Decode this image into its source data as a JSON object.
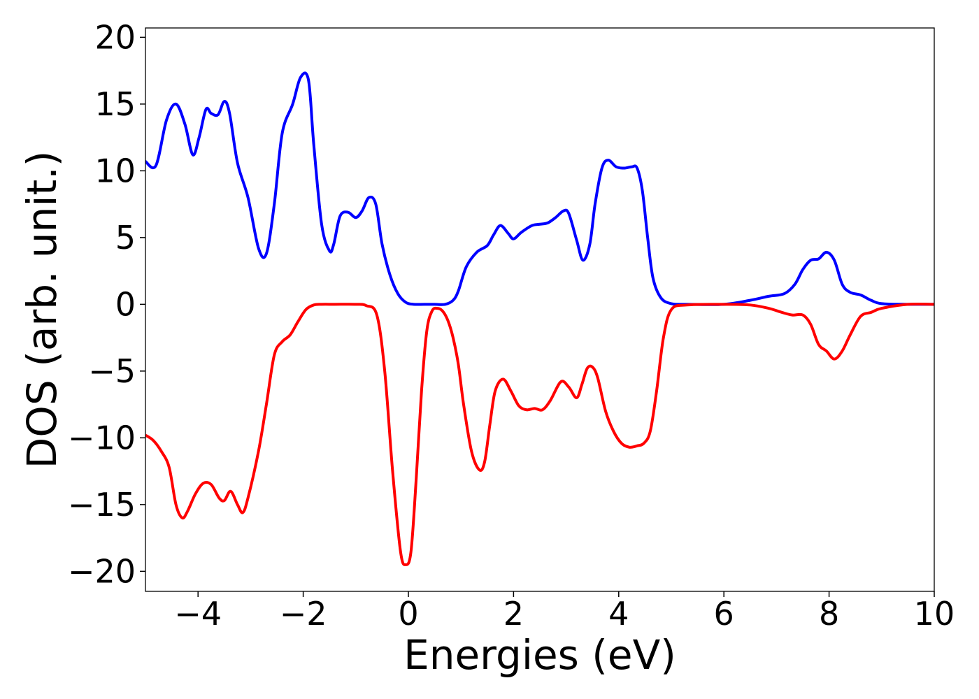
{
  "chart_data": {
    "type": "line",
    "xlabel": "Energies (eV)",
    "ylabel": "DOS (arb. unit.)",
    "xlim": [
      -5,
      10
    ],
    "ylim": [
      -21.5,
      20.7
    ],
    "xticks": [
      -4,
      -2,
      0,
      2,
      4,
      6,
      8,
      10
    ],
    "xtick_labels": [
      "−4",
      "−2",
      "0",
      "2",
      "4",
      "6",
      "8",
      "10"
    ],
    "yticks": [
      20,
      15,
      10,
      5,
      0,
      -5,
      -10,
      -15,
      -20
    ],
    "ytick_labels": [
      "20",
      "15",
      "10",
      "5",
      "0",
      "−5",
      "−10",
      "−15",
      "−20"
    ],
    "grid": false,
    "series": [
      {
        "color": "#0000ff",
        "x": [
          -5.0,
          -4.8,
          -4.6,
          -4.42,
          -4.25,
          -4.1,
          -3.98,
          -3.85,
          -3.75,
          -3.62,
          -3.5,
          -3.4,
          -3.25,
          -3.05,
          -2.85,
          -2.7,
          -2.55,
          -2.4,
          -2.2,
          -2.05,
          -1.9,
          -1.8,
          -1.65,
          -1.5,
          -1.42,
          -1.3,
          -1.15,
          -1.0,
          -0.88,
          -0.75,
          -0.62,
          -0.5,
          -0.35,
          -0.2,
          -0.05,
          0.1,
          0.3,
          0.5,
          0.7,
          0.85,
          0.95,
          1.1,
          1.3,
          1.5,
          1.62,
          1.75,
          1.9,
          2.0,
          2.15,
          2.35,
          2.5,
          2.65,
          2.8,
          2.95,
          3.05,
          3.2,
          3.32,
          3.45,
          3.55,
          3.68,
          3.8,
          3.95,
          4.1,
          4.25,
          4.35,
          4.45,
          4.55,
          4.65,
          4.8,
          5.0,
          5.3,
          6.0,
          6.5,
          6.85,
          7.15,
          7.35,
          7.5,
          7.65,
          7.8,
          7.95,
          8.1,
          8.25,
          8.4,
          8.6,
          8.8,
          9.0,
          9.5,
          10.0
        ],
        "y": [
          10.7,
          10.4,
          13.8,
          15.0,
          13.5,
          11.2,
          12.5,
          14.6,
          14.3,
          14.2,
          15.2,
          14.3,
          10.6,
          8.0,
          4.2,
          3.8,
          7.5,
          12.8,
          15.0,
          17.0,
          16.8,
          12.0,
          6.0,
          4.0,
          4.5,
          6.6,
          6.9,
          6.5,
          7.0,
          8.0,
          7.5,
          4.5,
          2.2,
          0.8,
          0.15,
          0.0,
          0.0,
          0.0,
          0.0,
          0.3,
          1.0,
          2.8,
          3.9,
          4.4,
          5.2,
          5.9,
          5.3,
          4.9,
          5.4,
          5.9,
          6.0,
          6.1,
          6.5,
          7.0,
          6.8,
          4.8,
          3.3,
          4.5,
          7.5,
          10.2,
          10.8,
          10.3,
          10.2,
          10.3,
          10.2,
          8.5,
          5.0,
          2.0,
          0.5,
          0.05,
          0.0,
          0.0,
          0.3,
          0.6,
          0.8,
          1.5,
          2.6,
          3.3,
          3.4,
          3.9,
          3.3,
          1.5,
          0.9,
          0.7,
          0.3,
          0.05,
          0.0,
          0.0
        ]
      },
      {
        "color": "#ff0000",
        "x": [
          -5.0,
          -4.85,
          -4.7,
          -4.55,
          -4.42,
          -4.3,
          -4.2,
          -4.05,
          -3.9,
          -3.75,
          -3.6,
          -3.5,
          -3.38,
          -3.25,
          -3.15,
          -3.05,
          -2.85,
          -2.7,
          -2.55,
          -2.4,
          -2.25,
          -2.1,
          -1.95,
          -1.8,
          -1.65,
          -1.4,
          -1.0,
          -0.8,
          -0.6,
          -0.45,
          -0.3,
          -0.15,
          -0.05,
          0.05,
          0.15,
          0.25,
          0.35,
          0.45,
          0.55,
          0.65,
          0.75,
          0.85,
          0.95,
          1.05,
          1.2,
          1.35,
          1.45,
          1.55,
          1.65,
          1.8,
          1.95,
          2.1,
          2.25,
          2.4,
          2.55,
          2.7,
          2.9,
          3.05,
          3.2,
          3.3,
          3.4,
          3.5,
          3.6,
          3.75,
          3.9,
          4.05,
          4.2,
          4.35,
          4.48,
          4.6,
          4.72,
          4.85,
          5.0,
          5.3,
          6.0,
          6.5,
          6.85,
          7.1,
          7.3,
          7.5,
          7.65,
          7.8,
          7.95,
          8.1,
          8.25,
          8.4,
          8.6,
          8.8,
          9.0,
          9.5,
          10.0
        ],
        "y": [
          -9.8,
          -10.2,
          -11.0,
          -12.2,
          -15.0,
          -16.0,
          -15.5,
          -14.2,
          -13.4,
          -13.5,
          -14.5,
          -14.7,
          -14.0,
          -15.0,
          -15.6,
          -14.5,
          -11.0,
          -7.5,
          -3.8,
          -2.8,
          -2.3,
          -1.3,
          -0.4,
          -0.05,
          0.0,
          0.0,
          0.0,
          -0.1,
          -0.8,
          -5.0,
          -12.5,
          -18.5,
          -19.5,
          -18.5,
          -13.0,
          -6.5,
          -2.0,
          -0.5,
          -0.3,
          -0.5,
          -1.2,
          -2.5,
          -4.5,
          -7.5,
          -11.0,
          -12.4,
          -11.8,
          -9.0,
          -6.5,
          -5.6,
          -6.5,
          -7.6,
          -7.9,
          -7.8,
          -7.9,
          -7.2,
          -5.8,
          -6.2,
          -7.0,
          -6.0,
          -4.8,
          -4.7,
          -5.5,
          -8.0,
          -9.5,
          -10.4,
          -10.7,
          -10.6,
          -10.4,
          -9.5,
          -6.5,
          -2.5,
          -0.4,
          -0.05,
          0.0,
          -0.05,
          -0.3,
          -0.6,
          -0.8,
          -0.8,
          -1.5,
          -3.0,
          -3.5,
          -4.1,
          -3.5,
          -2.3,
          -0.9,
          -0.6,
          -0.3,
          0.0,
          0.0
        ]
      }
    ]
  }
}
